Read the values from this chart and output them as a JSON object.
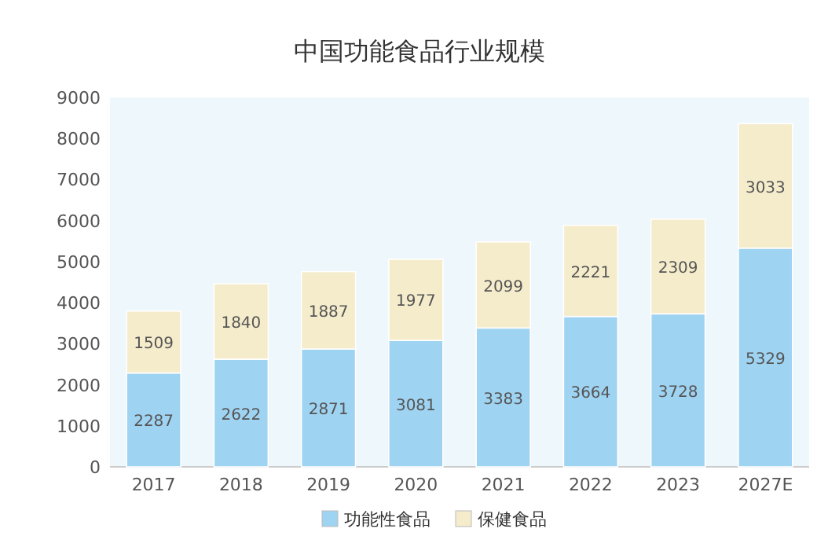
{
  "chart_data": {
    "type": "bar",
    "title": "中国功能食品行业规模",
    "stacked": true,
    "categories": [
      "2017",
      "2018",
      "2019",
      "2020",
      "2021",
      "2022",
      "2023",
      "2027E"
    ],
    "series": [
      {
        "name": "功能性食品",
        "color": "#9fd3f2",
        "values": [
          2287,
          2622,
          2871,
          3081,
          3383,
          3664,
          3728,
          5329
        ]
      },
      {
        "name": "保健食品",
        "color": "#f5eccb",
        "values": [
          1509,
          1840,
          1887,
          1977,
          2099,
          2221,
          2309,
          3033
        ]
      }
    ],
    "ylim": [
      0,
      9000
    ],
    "yticks": [
      0,
      1000,
      2000,
      3000,
      4000,
      5000,
      6000,
      7000,
      8000,
      9000
    ],
    "data_labels": true,
    "legend": "bottom",
    "grid": false
  }
}
